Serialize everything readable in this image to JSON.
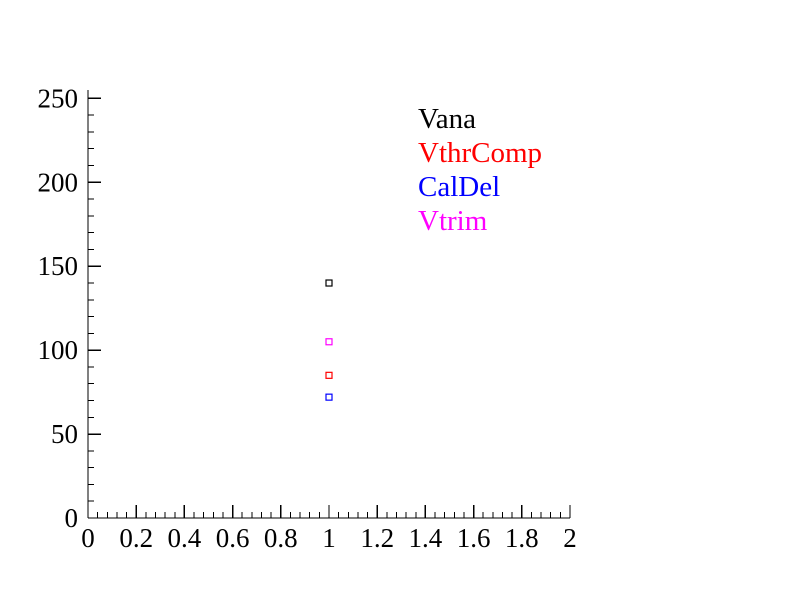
{
  "chart_data": {
    "type": "scatter",
    "title": "",
    "xlabel": "",
    "ylabel": "",
    "xlim": [
      0,
      2
    ],
    "ylim": [
      0,
      255
    ],
    "x_ticks": [
      0,
      0.2,
      0.4,
      0.6,
      0.8,
      1,
      1.2,
      1.4,
      1.6,
      1.8,
      2
    ],
    "x_tick_labels": [
      "0",
      "0.2",
      "0.4",
      "0.6",
      "0.8",
      "1",
      "1.2",
      "1.4",
      "1.6",
      "1.8",
      "2"
    ],
    "x_minor_step": 0.04,
    "y_ticks": [
      0,
      50,
      100,
      150,
      200,
      250
    ],
    "y_tick_labels": [
      "0",
      "50",
      "100",
      "150",
      "200",
      "250"
    ],
    "y_minor_step": 10,
    "grid": false,
    "legend_position": "top-right",
    "axis_color": "#000000",
    "background": "#ffffff",
    "series": [
      {
        "name": "Vana",
        "color": "#000000",
        "marker": "open-square",
        "x": [
          1
        ],
        "y": [
          140
        ]
      },
      {
        "name": "VthrComp",
        "color": "#ff0000",
        "marker": "open-square",
        "x": [
          1
        ],
        "y": [
          85
        ]
      },
      {
        "name": "CalDel",
        "color": "#0000ff",
        "marker": "open-square",
        "x": [
          1
        ],
        "y": [
          72
        ]
      },
      {
        "name": "Vtrim",
        "color": "#ff00ff",
        "marker": "open-square",
        "x": [
          1
        ],
        "y": [
          105
        ]
      }
    ]
  }
}
